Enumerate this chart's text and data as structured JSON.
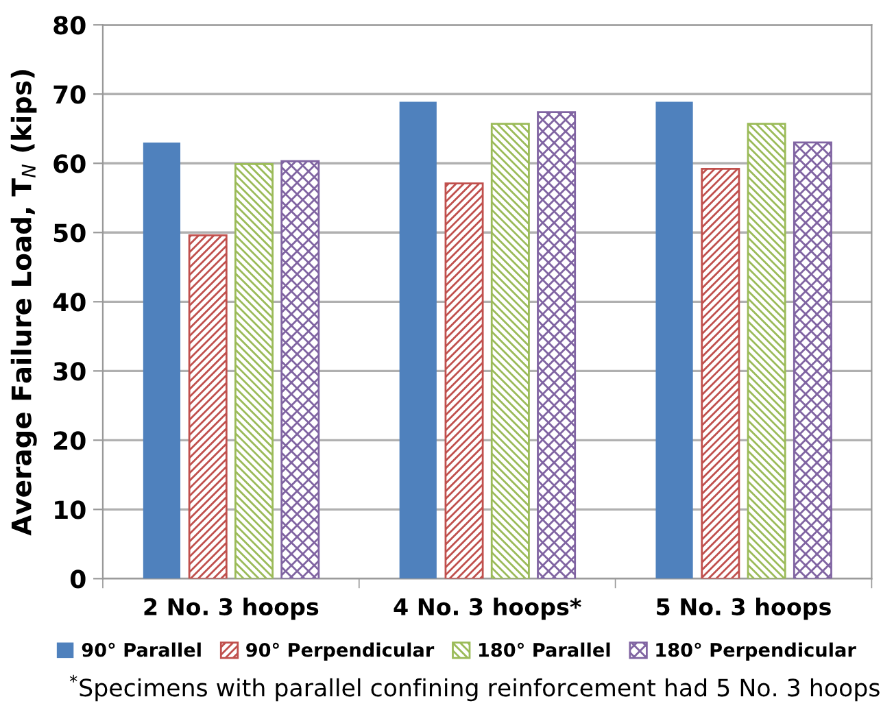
{
  "chart_data": {
    "type": "bar",
    "ylabel": "Average Failure Load, T$_{N}$ (kips)",
    "categories": [
      "2 No. 3 hoops",
      "4 No. 3 hoops*",
      "5 No. 3 hoops"
    ],
    "series": [
      {
        "name": "90° Parallel",
        "color": "#4f81bd",
        "values": [
          63,
          68.9,
          68.9
        ]
      },
      {
        "name": "90° Perpendicular",
        "color": "#c0504d",
        "values": [
          49.6,
          57.1,
          59.2
        ]
      },
      {
        "name": "180° Parallel",
        "color": "#9bbb59",
        "values": [
          59.9,
          65.7,
          65.7
        ]
      },
      {
        "name": "180° Perpendicular",
        "color": "#8064a2",
        "values": [
          60.3,
          67.4,
          63.0
        ]
      }
    ],
    "ylim": [
      0,
      80
    ],
    "yticks": [
      0,
      10,
      20,
      30,
      40,
      50,
      60,
      70,
      80
    ],
    "grid": "y",
    "legend": "bottom",
    "annotations": [
      "$^{*}$Specimens with parallel confining reinforcement had 5 No. 3 hoops"
    ]
  }
}
